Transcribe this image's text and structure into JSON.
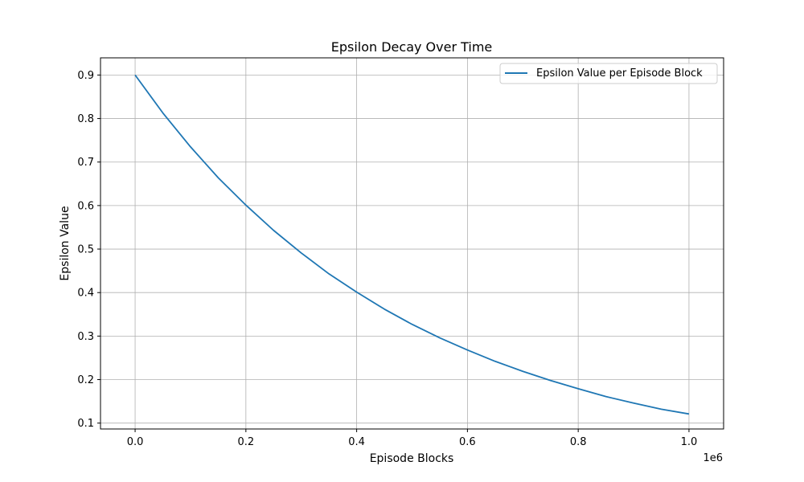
{
  "chart_data": {
    "type": "line",
    "title": "Epsilon Decay Over Time",
    "xlabel": "Episode Blocks",
    "ylabel": "Epsilon Value",
    "x_offset_label": "1e6",
    "xlim": [
      -0.0625,
      1.0625
    ],
    "ylim": [
      0.0865,
      0.9395
    ],
    "x_ticks": [
      0.0,
      0.2,
      0.4,
      0.6,
      0.8,
      1.0
    ],
    "x_tick_labels": [
      "0.0",
      "0.2",
      "0.4",
      "0.6",
      "0.8",
      "1.0"
    ],
    "y_ticks": [
      0.1,
      0.2,
      0.3,
      0.4,
      0.5,
      0.6,
      0.7,
      0.8,
      0.9
    ],
    "y_tick_labels": [
      "0.1",
      "0.2",
      "0.3",
      "0.4",
      "0.5",
      "0.6",
      "0.7",
      "0.8",
      "0.9"
    ],
    "grid": true,
    "legend_position": "top-right",
    "series": [
      {
        "name": "Epsilon Value per Episode Block",
        "color": "#1f77b4",
        "x": [
          0.0,
          0.05,
          0.1,
          0.15,
          0.2,
          0.25,
          0.3,
          0.35,
          0.4,
          0.45,
          0.5,
          0.55,
          0.6,
          0.65,
          0.7,
          0.75,
          0.8,
          0.85,
          0.9,
          0.95,
          1.0
        ],
        "y": [
          0.9,
          0.813,
          0.735,
          0.664,
          0.601,
          0.543,
          0.491,
          0.443,
          0.401,
          0.362,
          0.327,
          0.296,
          0.268,
          0.242,
          0.219,
          0.198,
          0.179,
          0.161,
          0.146,
          0.132,
          0.121
        ]
      }
    ]
  }
}
